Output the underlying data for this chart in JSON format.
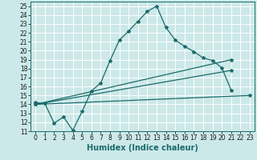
{
  "xlabel": "Humidex (Indice chaleur)",
  "ylabel": "",
  "background_color": "#cce8e8",
  "grid_color": "#ffffff",
  "line_color": "#1a6b6b",
  "xlim": [
    -0.5,
    23.5
  ],
  "ylim": [
    11,
    25.5
  ],
  "xticks": [
    0,
    1,
    2,
    3,
    4,
    5,
    6,
    7,
    8,
    9,
    10,
    11,
    12,
    13,
    14,
    15,
    16,
    17,
    18,
    19,
    20,
    21,
    22,
    23
  ],
  "yticks": [
    11,
    12,
    13,
    14,
    15,
    16,
    17,
    18,
    19,
    20,
    21,
    22,
    23,
    24,
    25
  ],
  "series": [
    {
      "x": [
        0,
        1,
        2,
        3,
        4,
        5,
        6,
        7,
        8,
        9,
        10,
        11,
        12,
        13,
        14,
        15,
        16,
        17,
        18,
        19,
        20,
        21
      ],
      "y": [
        14.2,
        14.1,
        11.9,
        12.6,
        11.1,
        13.2,
        15.5,
        16.4,
        18.9,
        21.2,
        22.2,
        23.3,
        24.4,
        25.0,
        22.6,
        21.2,
        20.5,
        19.9,
        19.2,
        18.9,
        18.1,
        15.6
      ]
    },
    {
      "x": [
        0,
        21
      ],
      "y": [
        14.0,
        19.0
      ]
    },
    {
      "x": [
        0,
        21
      ],
      "y": [
        14.0,
        17.8
      ]
    },
    {
      "x": [
        0,
        23
      ],
      "y": [
        14.0,
        15.0
      ]
    }
  ]
}
